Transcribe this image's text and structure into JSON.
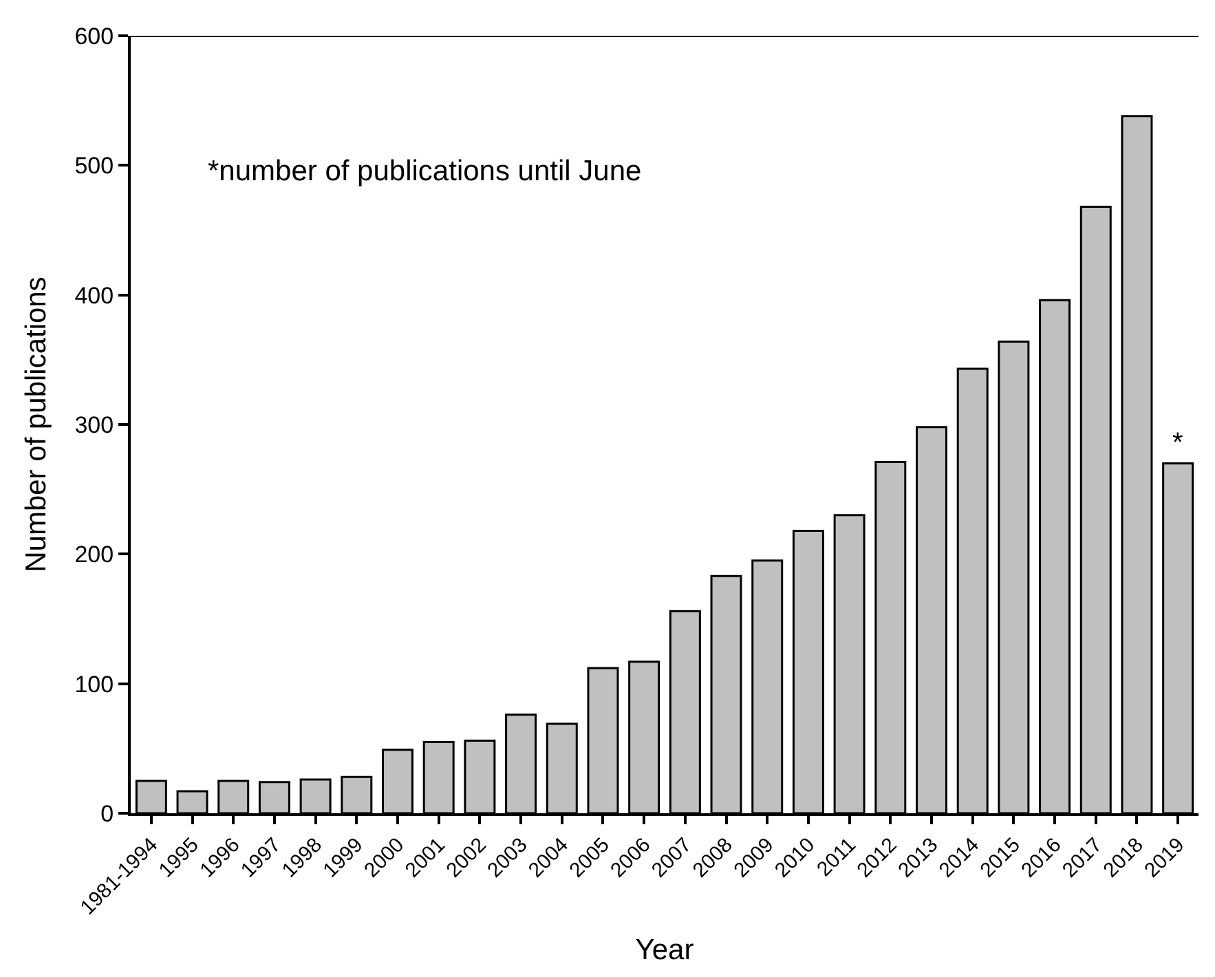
{
  "chart_data": {
    "type": "bar",
    "xlabel": "Year",
    "ylabel": "Number of publications",
    "categories": [
      "1981-1994",
      "1995",
      "1996",
      "1997",
      "1998",
      "1999",
      "2000",
      "2001",
      "2002",
      "2003",
      "2004",
      "2005",
      "2006",
      "2007",
      "2008",
      "2009",
      "2010",
      "2011",
      "2012",
      "2013",
      "2014",
      "2015",
      "2016",
      "2017",
      "2018",
      "2019"
    ],
    "values": [
      25,
      17,
      25,
      24,
      26,
      28,
      49,
      55,
      56,
      76,
      69,
      112,
      117,
      156,
      183,
      195,
      218,
      230,
      271,
      298,
      343,
      364,
      396,
      468,
      538,
      270
    ],
    "color": "#c0c0c0",
    "ylim": [
      0,
      600
    ],
    "yticks": [
      0,
      100,
      200,
      300,
      400,
      500,
      600
    ],
    "annotations": [
      "*number of publications until June",
      "*"
    ]
  }
}
